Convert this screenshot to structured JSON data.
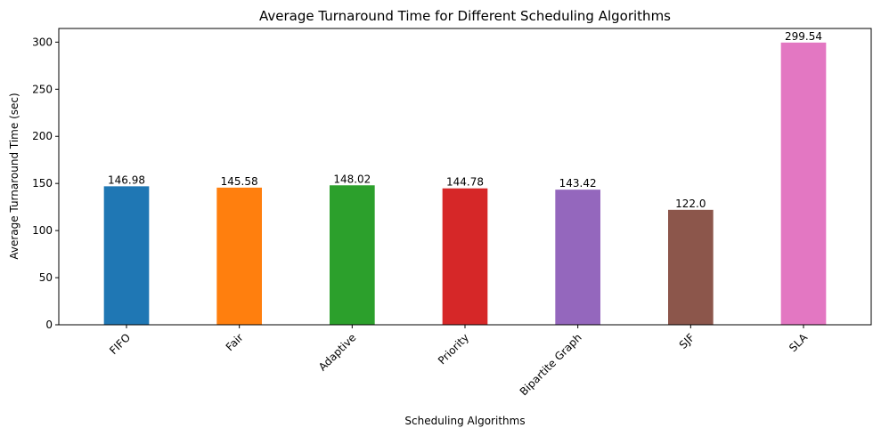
{
  "chart_data": {
    "type": "bar",
    "title": "Average Turnaround Time for Different Scheduling Algorithms",
    "xlabel": "Scheduling Algorithms",
    "ylabel": "Average Turnaround Time (sec)",
    "categories": [
      "FIFO",
      "Fair",
      "Adaptive",
      "Priority",
      "Bipartite Graph",
      "SJF",
      "SLA"
    ],
    "values": [
      146.98,
      145.58,
      148.02,
      144.78,
      143.42,
      122.0,
      299.54
    ],
    "value_labels": [
      "146.98",
      "145.58",
      "148.02",
      "144.78",
      "143.42",
      "122.0",
      "299.54"
    ],
    "colors": [
      "#1f77b4",
      "#ff7f0e",
      "#2ca02c",
      "#d62728",
      "#9467bd",
      "#8c564b",
      "#e377c2"
    ],
    "ylim": [
      0,
      314.5
    ],
    "yticks": [
      0,
      50,
      100,
      150,
      200,
      250,
      300
    ],
    "grid": false,
    "legend": "none",
    "xtick_rotation": "45deg"
  }
}
